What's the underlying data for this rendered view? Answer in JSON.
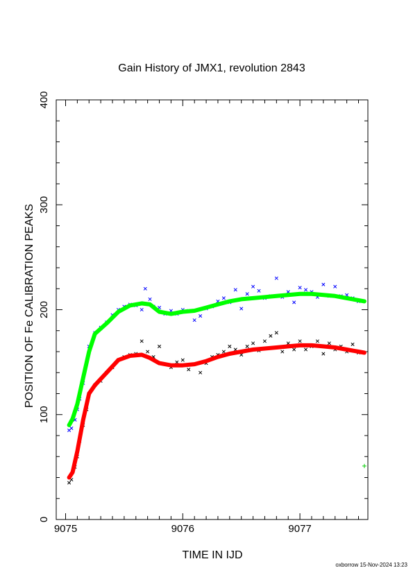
{
  "chart_data": {
    "type": "scatter",
    "title": "Gain History of JMX1, revolution 2843",
    "xlabel": "TIME IN IJD",
    "ylabel": "POSITION OF Fe CALIBRATION PEAKS",
    "xlim": [
      9074.92,
      9077.58
    ],
    "ylim": [
      0,
      400
    ],
    "xticks": [
      9075,
      9076,
      9077
    ],
    "yticks": [
      0,
      100,
      200,
      300,
      400
    ],
    "grid": false,
    "series": [
      {
        "color": "#0000ff",
        "marker": "x",
        "points": [
          [
            9075.03,
            85
          ],
          [
            9075.05,
            87
          ],
          [
            9075.08,
            95
          ],
          [
            9075.1,
            105
          ],
          [
            9075.12,
            115
          ],
          [
            9075.15,
            130
          ],
          [
            9075.18,
            150
          ],
          [
            9075.2,
            165
          ],
          [
            9075.25,
            178
          ],
          [
            9075.3,
            183
          ],
          [
            9075.35,
            188
          ],
          [
            9075.4,
            195
          ],
          [
            9075.45,
            200
          ],
          [
            9075.5,
            203
          ],
          [
            9075.55,
            205
          ],
          [
            9075.6,
            204
          ],
          [
            9075.65,
            200
          ],
          [
            9075.68,
            220
          ],
          [
            9075.72,
            210
          ],
          [
            9075.75,
            203
          ],
          [
            9075.8,
            202
          ],
          [
            9075.85,
            196
          ],
          [
            9075.9,
            199
          ],
          [
            9075.95,
            196
          ],
          [
            9076.0,
            200
          ],
          [
            9076.05,
            199
          ],
          [
            9076.1,
            190
          ],
          [
            9076.15,
            194
          ],
          [
            9076.2,
            201
          ],
          [
            9076.25,
            203
          ],
          [
            9076.3,
            208
          ],
          [
            9076.35,
            211
          ],
          [
            9076.4,
            207
          ],
          [
            9076.45,
            219
          ],
          [
            9076.5,
            201
          ],
          [
            9076.55,
            215
          ],
          [
            9076.6,
            222
          ],
          [
            9076.65,
            218
          ],
          [
            9076.7,
            211
          ],
          [
            9076.75,
            213
          ],
          [
            9076.8,
            230
          ],
          [
            9076.85,
            212
          ],
          [
            9076.9,
            217
          ],
          [
            9076.95,
            207
          ],
          [
            9077.0,
            221
          ],
          [
            9077.05,
            219
          ],
          [
            9077.1,
            217
          ],
          [
            9077.15,
            212
          ],
          [
            9077.2,
            224
          ],
          [
            9077.25,
            213
          ],
          [
            9077.3,
            222
          ],
          [
            9077.35,
            213
          ],
          [
            9077.4,
            214
          ],
          [
            9077.45,
            211
          ],
          [
            9077.5,
            208
          ]
        ]
      },
      {
        "color": "#00ff00",
        "marker": "fit",
        "points": [
          [
            9075.03,
            90
          ],
          [
            9075.06,
            96
          ],
          [
            9075.1,
            110
          ],
          [
            9075.15,
            135
          ],
          [
            9075.2,
            160
          ],
          [
            9075.25,
            177
          ],
          [
            9075.35,
            187
          ],
          [
            9075.45,
            198
          ],
          [
            9075.55,
            204
          ],
          [
            9075.65,
            206
          ],
          [
            9075.72,
            205
          ],
          [
            9075.8,
            198
          ],
          [
            9075.9,
            196
          ],
          [
            9076.0,
            198
          ],
          [
            9076.1,
            199
          ],
          [
            9076.2,
            202
          ],
          [
            9076.3,
            205
          ],
          [
            9076.4,
            208
          ],
          [
            9076.5,
            210
          ],
          [
            9076.6,
            211
          ],
          [
            9076.7,
            212
          ],
          [
            9076.8,
            213
          ],
          [
            9076.9,
            214
          ],
          [
            9077.0,
            215
          ],
          [
            9077.1,
            215
          ],
          [
            9077.2,
            214
          ],
          [
            9077.3,
            213
          ],
          [
            9077.4,
            211
          ],
          [
            9077.5,
            209
          ],
          [
            9077.55,
            208
          ]
        ]
      },
      {
        "color": "#000000",
        "marker": "x",
        "points": [
          [
            9075.03,
            35
          ],
          [
            9075.05,
            38
          ],
          [
            9075.08,
            50
          ],
          [
            9075.1,
            60
          ],
          [
            9075.12,
            75
          ],
          [
            9075.15,
            90
          ],
          [
            9075.18,
            105
          ],
          [
            9075.2,
            120
          ],
          [
            9075.25,
            128
          ],
          [
            9075.3,
            132
          ],
          [
            9075.35,
            140
          ],
          [
            9075.4,
            145
          ],
          [
            9075.45,
            152
          ],
          [
            9075.5,
            155
          ],
          [
            9075.55,
            157
          ],
          [
            9075.6,
            158
          ],
          [
            9075.65,
            170
          ],
          [
            9075.7,
            160
          ],
          [
            9075.75,
            155
          ],
          [
            9075.8,
            165
          ],
          [
            9075.85,
            148
          ],
          [
            9075.9,
            145
          ],
          [
            9075.95,
            150
          ],
          [
            9076.0,
            152
          ],
          [
            9076.05,
            143
          ],
          [
            9076.1,
            148
          ],
          [
            9076.15,
            140
          ],
          [
            9076.2,
            149
          ],
          [
            9076.25,
            155
          ],
          [
            9076.3,
            157
          ],
          [
            9076.35,
            160
          ],
          [
            9076.4,
            165
          ],
          [
            9076.45,
            162
          ],
          [
            9076.5,
            157
          ],
          [
            9076.55,
            165
          ],
          [
            9076.6,
            168
          ],
          [
            9076.65,
            161
          ],
          [
            9076.7,
            170
          ],
          [
            9076.75,
            175
          ],
          [
            9076.8,
            178
          ],
          [
            9076.85,
            160
          ],
          [
            9076.9,
            168
          ],
          [
            9076.95,
            162
          ],
          [
            9077.0,
            170
          ],
          [
            9077.05,
            162
          ],
          [
            9077.1,
            165
          ],
          [
            9077.15,
            170
          ],
          [
            9077.2,
            158
          ],
          [
            9077.25,
            168
          ],
          [
            9077.3,
            162
          ],
          [
            9077.35,
            165
          ],
          [
            9077.4,
            160
          ],
          [
            9077.45,
            167
          ],
          [
            9077.5,
            159
          ]
        ]
      },
      {
        "color": "#ff0000",
        "marker": "fit",
        "points": [
          [
            9075.03,
            40
          ],
          [
            9075.06,
            45
          ],
          [
            9075.1,
            65
          ],
          [
            9075.15,
            95
          ],
          [
            9075.2,
            120
          ],
          [
            9075.25,
            128
          ],
          [
            9075.35,
            140
          ],
          [
            9075.45,
            152
          ],
          [
            9075.55,
            156
          ],
          [
            9075.65,
            157
          ],
          [
            9075.72,
            154
          ],
          [
            9075.8,
            149
          ],
          [
            9075.9,
            147
          ],
          [
            9076.0,
            147
          ],
          [
            9076.1,
            148
          ],
          [
            9076.2,
            151
          ],
          [
            9076.3,
            155
          ],
          [
            9076.4,
            158
          ],
          [
            9076.5,
            160
          ],
          [
            9076.6,
            162
          ],
          [
            9076.7,
            163
          ],
          [
            9076.8,
            164
          ],
          [
            9076.9,
            165
          ],
          [
            9077.0,
            166
          ],
          [
            9077.1,
            166
          ],
          [
            9077.2,
            165
          ],
          [
            9077.3,
            164
          ],
          [
            9077.4,
            162
          ],
          [
            9077.5,
            160
          ],
          [
            9077.55,
            159
          ]
        ]
      },
      {
        "color": "#00cc00",
        "marker": "plus",
        "points": [
          [
            9077.55,
            51
          ]
        ]
      }
    ]
  },
  "footer": {
    "stamp": "oxborrow 15-Nov-2024 13:23"
  }
}
